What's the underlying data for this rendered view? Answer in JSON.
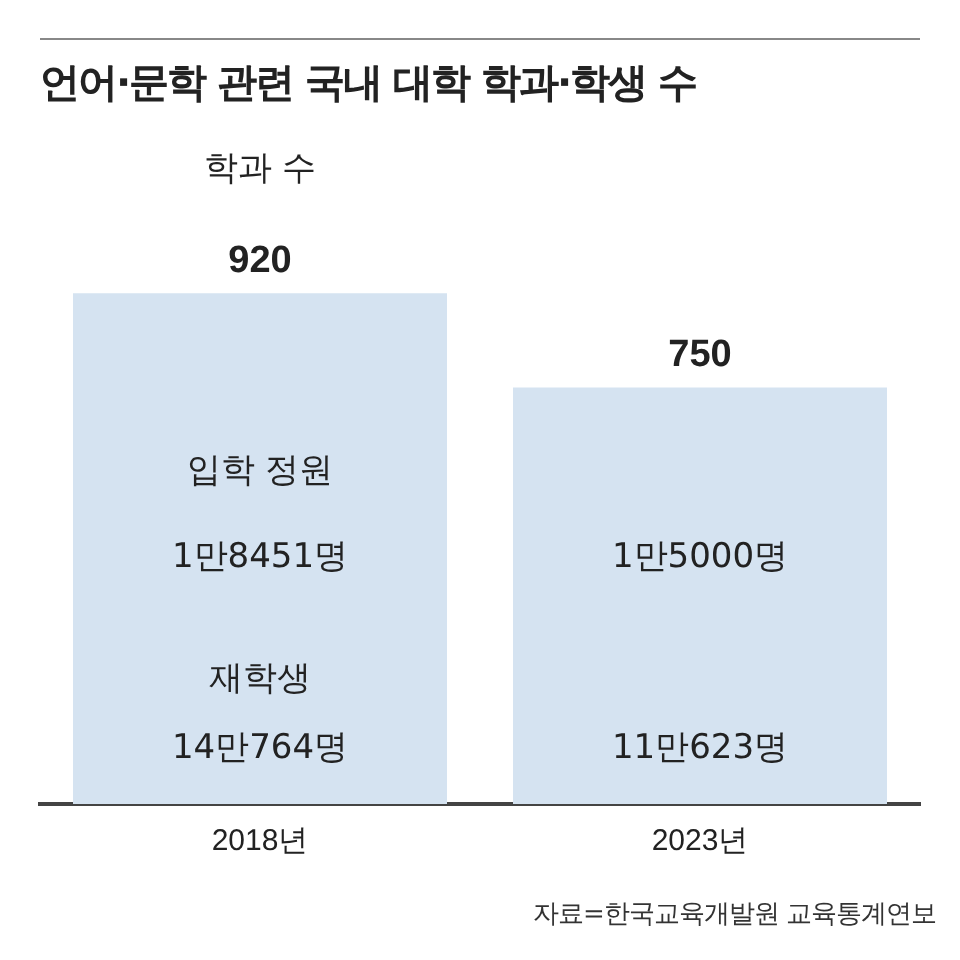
{
  "chart_data": {
    "type": "bar",
    "title": "언어·문학 관련 국내 대학 학과·학생 수",
    "categories": [
      "2018년",
      "2023년"
    ],
    "values": [
      920,
      750
    ],
    "color": "#d5e3f1",
    "data_labels": true,
    "tick_labels": "x",
    "grid": false,
    "annotations": [
      "학과 수",
      "입학 정원",
      "1만8451명",
      "재학생",
      "14만764명",
      "1만5000명",
      "11만623명",
      "자료=한국교육개발원 교육통계연보"
    ]
  }
}
